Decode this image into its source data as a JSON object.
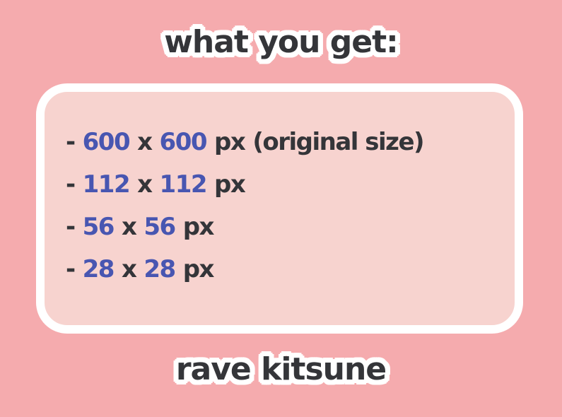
{
  "page": {
    "title": "what you get:",
    "footer": "rave kitsune"
  },
  "panel": {
    "items": [
      {
        "bullet": "-",
        "width": "600",
        "separator": "x",
        "height": "600",
        "unit": "px",
        "note": "(original size)"
      },
      {
        "bullet": "-",
        "width": "112",
        "separator": "x",
        "height": "112",
        "unit": "px",
        "note": ""
      },
      {
        "bullet": "-",
        "width": "56",
        "separator": "x",
        "height": "56",
        "unit": "px",
        "note": ""
      },
      {
        "bullet": "-",
        "width": "28",
        "separator": "x",
        "height": "28",
        "unit": "px",
        "note": ""
      }
    ]
  },
  "colors": {
    "background_pink": "#F5ABAE",
    "panel_pink": "#F7D3CF",
    "panel_border_white": "#FFFFFF",
    "text_dark": "#343539",
    "number_blue": "#4856B1"
  }
}
